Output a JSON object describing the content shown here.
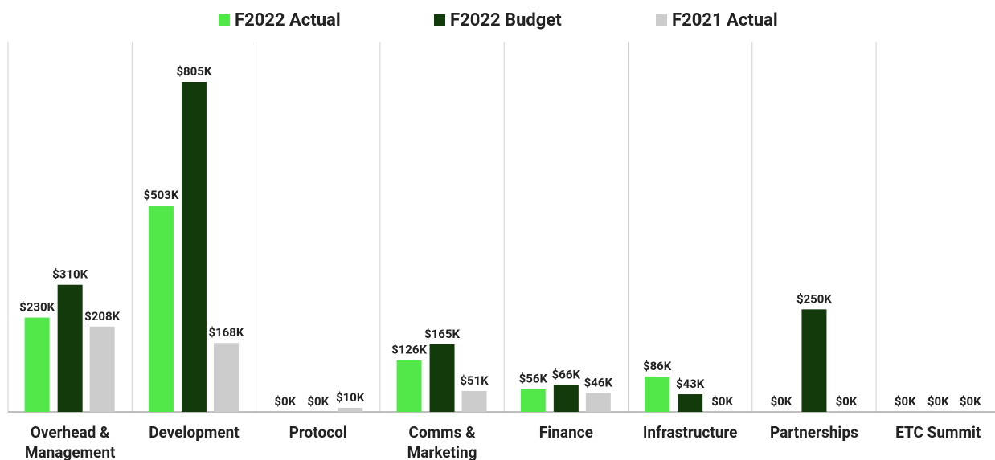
{
  "chart_data": {
    "type": "bar",
    "categories": [
      "Overhead & Management",
      "Development",
      "Protocol",
      "Comms & Marketing",
      "Finance",
      "Infrastructure",
      "Partnerships",
      "ETC Summit"
    ],
    "series": [
      {
        "name": "F2022 Actual",
        "color": "#52e84a",
        "values": [
          230,
          503,
          0,
          126,
          56,
          86,
          0,
          0
        ],
        "value_labels": [
          "$230K",
          "$503K",
          "$0K",
          "$126K",
          "$56K",
          "$86K",
          "$0K",
          "$0K"
        ]
      },
      {
        "name": "F2022 Budget",
        "color": "#133a0a",
        "values": [
          310,
          805,
          0,
          165,
          66,
          43,
          250,
          0
        ],
        "value_labels": [
          "$310K",
          "$805K",
          "$0K",
          "$165K",
          "$66K",
          "$43K",
          "$250K",
          "$0K"
        ]
      },
      {
        "name": "F2021 Actual",
        "color": "#cccccc",
        "values": [
          208,
          168,
          10,
          51,
          46,
          0,
          0,
          0
        ],
        "value_labels": [
          "$208K",
          "$168K",
          "$10K",
          "$51K",
          "$46K",
          "$0K",
          "$0K",
          "$0K"
        ]
      }
    ],
    "legend": "top"
  }
}
